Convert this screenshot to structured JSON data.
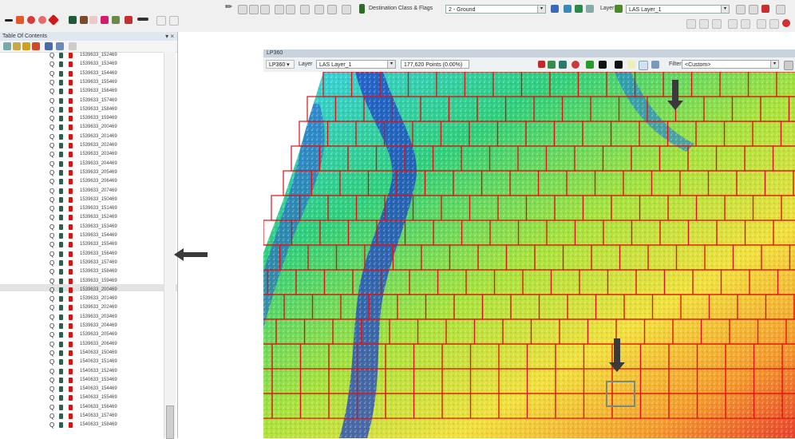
{
  "toolbar": {
    "dest_class_label": "Destination Class & Flags",
    "dest_class_value": "2 - Ground",
    "layer_label": "Layer",
    "layer_value": "LAS Layer_1"
  },
  "toc": {
    "title": "Table Of Contents",
    "close": "▾ ×",
    "items": [
      "1539633_152469",
      "1539633_153469",
      "1539633_154469",
      "1539633_155469",
      "1539633_156469",
      "1539633_157469",
      "1539633_158469",
      "1539633_159469",
      "1539633_200469",
      "1539633_201469",
      "1539633_202469",
      "1539633_203469",
      "1539633_204469",
      "1539633_205469",
      "1539633_206469",
      "1539633_207469",
      "1539633_150469",
      "1539633_151469",
      "1539633_152469",
      "1539633_153469",
      "1539633_154469",
      "1539633_155469",
      "1539633_156469",
      "1539633_157469",
      "1539633_158469",
      "1539633_159469",
      "1539633_200469",
      "1539633_201469",
      "1539633_202469",
      "1539633_203469",
      "1539633_204469",
      "1539633_205469",
      "1539633_206469",
      "1540633_150469",
      "1540633_151469",
      "1540633_152469",
      "1540633_153469",
      "1540633_154469",
      "1540633_155469",
      "1540633_156469",
      "1540633_157469",
      "1540633_158469"
    ]
  },
  "viewer": {
    "title": "LP360",
    "lp360_btn": "LP360 ▾",
    "layer_label": "Layer",
    "layer_value": "LAS Layer_1",
    "points_text": "177,620 Points (0.00%)",
    "filter_label": "Filter",
    "filter_value": "<Custom>"
  },
  "colors": {
    "tile_border": "#e01010",
    "highlight_tile": "#7a8a7a",
    "arrow": "#3a3a3a",
    "titlebar": "#c9d3de"
  },
  "icons": [
    "pencil-icon",
    "add-icon",
    "tool-icon",
    "layer-icon",
    "filter-icon",
    "close-icon",
    "arrow-icon"
  ]
}
